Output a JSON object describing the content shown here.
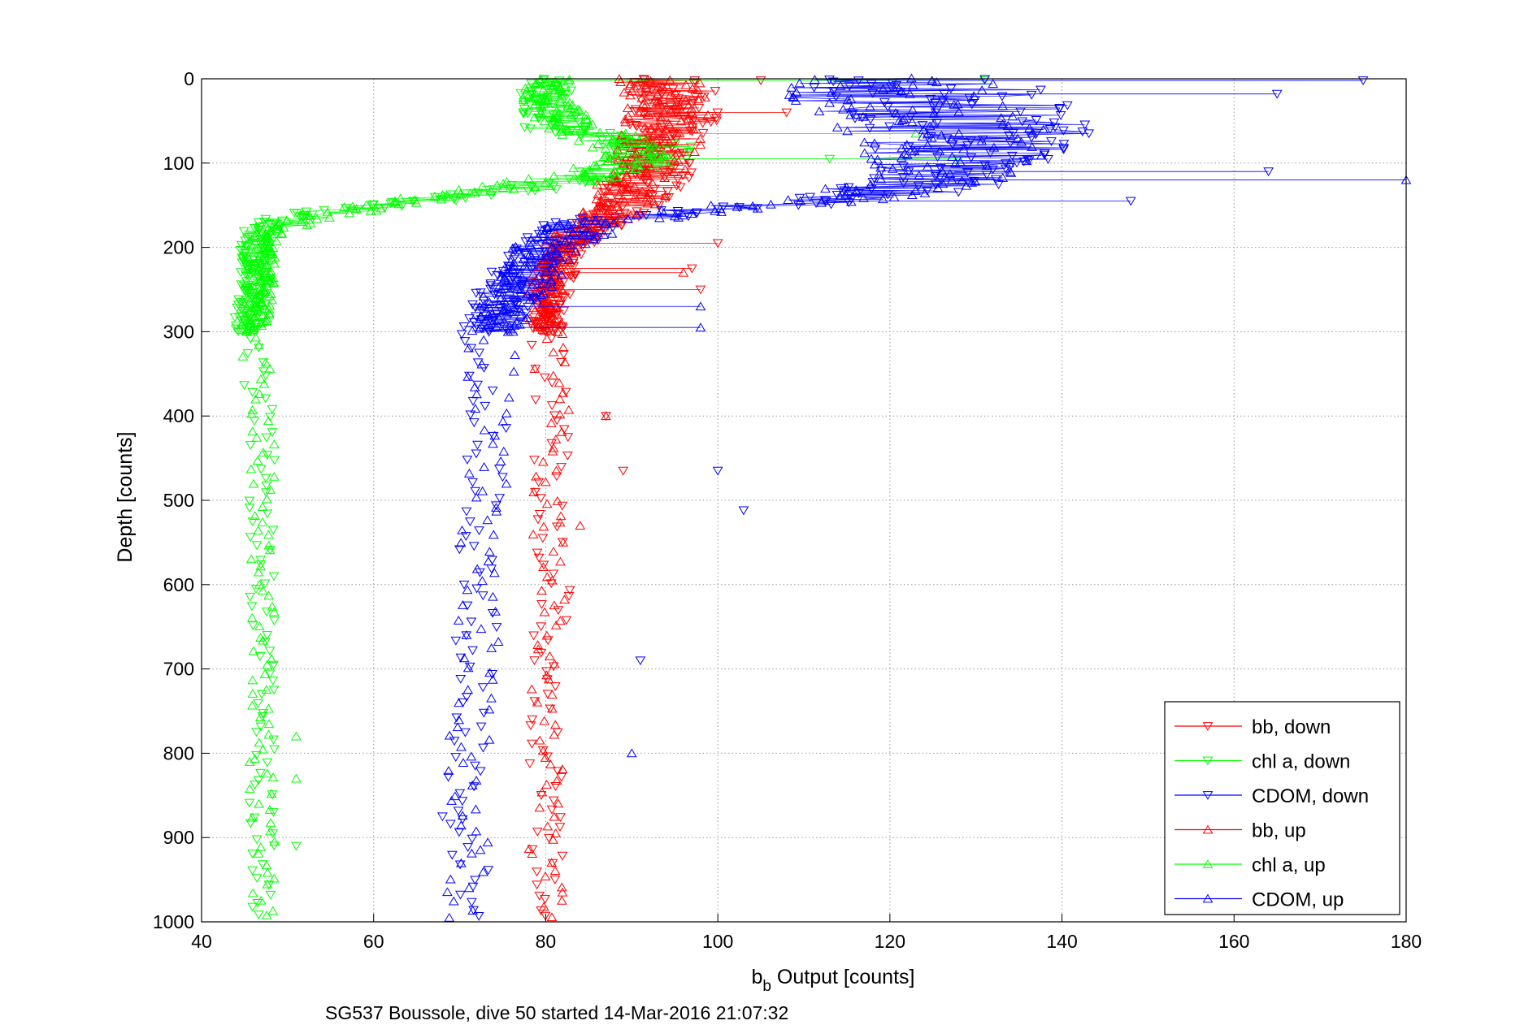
{
  "chart_data": {
    "type": "scatter",
    "title": "",
    "footnote": "SG537 Boussole, dive 50 started 14-Mar-2016 21:07:32",
    "xlabel": {
      "main": "b",
      "sub": "b",
      "rest": " Output [counts]"
    },
    "ylabel": "Depth [counts]",
    "xlim": [
      40,
      180
    ],
    "ylim": [
      0,
      1000
    ],
    "y_reversed": true,
    "grid": true,
    "xticks": [
      "40",
      "60",
      "80",
      "100",
      "120",
      "140",
      "160",
      "180"
    ],
    "yticks": [
      "0",
      "100",
      "200",
      "300",
      "400",
      "500",
      "600",
      "700",
      "800",
      "900",
      "1000"
    ],
    "legend_position": "bottom-right",
    "series": [
      {
        "name": "bb, down",
        "color": "#ff0000",
        "marker": "triangle-down",
        "profile": [
          [
            0,
            94
          ],
          [
            20,
            95
          ],
          [
            50,
            95
          ],
          [
            80,
            93
          ],
          [
            100,
            92
          ],
          [
            120,
            92
          ],
          [
            150,
            90
          ],
          [
            180,
            85
          ],
          [
            210,
            82
          ],
          [
            250,
            81
          ],
          [
            300,
            80
          ],
          [
            400,
            81
          ],
          [
            500,
            80
          ],
          [
            600,
            81
          ],
          [
            700,
            80
          ],
          [
            800,
            80
          ],
          [
            900,
            80
          ],
          [
            1000,
            80
          ]
        ],
        "spread": [
          5,
          5,
          5,
          5,
          5,
          5,
          4,
          3,
          2,
          2,
          2,
          2,
          2,
          2,
          2,
          2,
          2,
          2
        ],
        "outliers": [
          [
            105,
            2
          ],
          [
            108,
            40
          ],
          [
            100,
            195
          ],
          [
            97,
            225
          ],
          [
            98,
            250
          ],
          [
            89,
            465
          ],
          [
            87,
            400
          ]
        ]
      },
      {
        "name": "chl a, down",
        "color": "#00ff00",
        "marker": "triangle-down",
        "profile": [
          [
            0,
            80
          ],
          [
            30,
            80
          ],
          [
            60,
            81
          ],
          [
            80,
            92
          ],
          [
            100,
            92
          ],
          [
            120,
            85
          ],
          [
            140,
            70
          ],
          [
            160,
            52
          ],
          [
            175,
            47
          ],
          [
            200,
            46
          ],
          [
            250,
            46
          ],
          [
            300,
            45
          ],
          [
            400,
            47
          ],
          [
            500,
            47
          ],
          [
            600,
            47
          ],
          [
            700,
            47
          ],
          [
            800,
            47
          ],
          [
            900,
            47
          ],
          [
            1000,
            47
          ]
        ],
        "spread": [
          3,
          3,
          4,
          5,
          5,
          5,
          4,
          3,
          2,
          1.5,
          1.5,
          1.5,
          1.5,
          1.5,
          1.5,
          1.5,
          1.5,
          1.5,
          1.5
        ],
        "outliers": [
          [
            131,
            2
          ],
          [
            128,
            95
          ],
          [
            113,
            95
          ],
          [
            51,
            910
          ]
        ]
      },
      {
        "name": "CDOM, down",
        "color": "#0000ff",
        "marker": "triangle-down",
        "profile": [
          [
            0,
            125
          ],
          [
            20,
            125
          ],
          [
            50,
            130
          ],
          [
            80,
            130
          ],
          [
            100,
            130
          ],
          [
            120,
            125
          ],
          [
            140,
            118
          ],
          [
            155,
            100
          ],
          [
            170,
            85
          ],
          [
            200,
            80
          ],
          [
            250,
            76
          ],
          [
            300,
            73
          ],
          [
            400,
            73
          ],
          [
            500,
            73
          ],
          [
            600,
            72
          ],
          [
            700,
            72
          ],
          [
            800,
            71
          ],
          [
            900,
            71
          ],
          [
            1000,
            71
          ]
        ],
        "spread": [
          14,
          14,
          14,
          14,
          12,
          10,
          8,
          6,
          5,
          4,
          4,
          3,
          2.5,
          2.5,
          2.5,
          2.5,
          2.5,
          2.5,
          2.5
        ],
        "outliers": [
          [
            175,
            2
          ],
          [
            165,
            18
          ],
          [
            164,
            110
          ],
          [
            148,
            145
          ],
          [
            100,
            465
          ],
          [
            103,
            512
          ],
          [
            91,
            690
          ],
          [
            68,
            875
          ]
        ]
      },
      {
        "name": "bb, up",
        "color": "#ff0000",
        "marker": "triangle-up",
        "profile": [
          [
            0,
            93
          ],
          [
            20,
            94
          ],
          [
            50,
            94
          ],
          [
            80,
            93
          ],
          [
            100,
            92
          ],
          [
            120,
            91
          ],
          [
            150,
            89
          ],
          [
            180,
            84
          ],
          [
            210,
            81
          ],
          [
            250,
            80
          ],
          [
            300,
            80
          ],
          [
            400,
            81
          ],
          [
            500,
            80
          ],
          [
            600,
            81
          ],
          [
            700,
            80
          ],
          [
            800,
            80
          ],
          [
            900,
            80
          ],
          [
            1000,
            80
          ]
        ],
        "spread": [
          5,
          5,
          5,
          5,
          5,
          5,
          4,
          3,
          2,
          2,
          2,
          2,
          2,
          2,
          2,
          2,
          2,
          2
        ],
        "outliers": [
          [
            96,
            230
          ],
          [
            84,
            530
          ],
          [
            87,
            400
          ]
        ]
      },
      {
        "name": "chl a, up",
        "color": "#00ff00",
        "marker": "triangle-up",
        "profile": [
          [
            0,
            80
          ],
          [
            30,
            80
          ],
          [
            60,
            84
          ],
          [
            80,
            90
          ],
          [
            100,
            90
          ],
          [
            120,
            82
          ],
          [
            140,
            68
          ],
          [
            160,
            55
          ],
          [
            180,
            48
          ],
          [
            200,
            47
          ],
          [
            250,
            47
          ],
          [
            300,
            46
          ],
          [
            400,
            47
          ],
          [
            500,
            47
          ],
          [
            600,
            47
          ],
          [
            700,
            47
          ],
          [
            800,
            47
          ],
          [
            900,
            47
          ],
          [
            1000,
            47
          ]
        ],
        "spread": [
          3,
          3,
          4,
          5,
          5,
          5,
          4,
          3,
          2,
          1.5,
          1.5,
          1.5,
          1.5,
          1.5,
          1.5,
          1.5,
          1.5,
          1.5,
          1.5
        ],
        "outliers": [
          [
            123,
            65
          ],
          [
            51,
            830
          ],
          [
            51,
            780
          ]
        ]
      },
      {
        "name": "CDOM, up",
        "color": "#0000ff",
        "marker": "triangle-up",
        "profile": [
          [
            0,
            120
          ],
          [
            20,
            120
          ],
          [
            50,
            125
          ],
          [
            80,
            128
          ],
          [
            100,
            128
          ],
          [
            120,
            124
          ],
          [
            140,
            117
          ],
          [
            155,
            100
          ],
          [
            170,
            86
          ],
          [
            200,
            80
          ],
          [
            250,
            77
          ],
          [
            300,
            74
          ],
          [
            400,
            73
          ],
          [
            500,
            73
          ],
          [
            600,
            72
          ],
          [
            700,
            72
          ],
          [
            800,
            71
          ],
          [
            900,
            71
          ],
          [
            1000,
            71
          ]
        ],
        "spread": [
          12,
          12,
          12,
          12,
          10,
          9,
          8,
          6,
          5,
          4,
          4,
          3,
          2.5,
          2.5,
          2.5,
          2.5,
          2.5,
          2.5,
          2.5
        ],
        "outliers": [
          [
            180,
            120
          ],
          [
            98,
            295
          ],
          [
            98,
            270
          ],
          [
            90,
            800
          ]
        ]
      }
    ]
  }
}
